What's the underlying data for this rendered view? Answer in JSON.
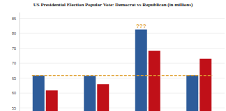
{
  "chart_data": {
    "type": "bar",
    "title": "US Presidential Election Popular Vote: Democrat vs Republican (in millions)",
    "categories": [
      null,
      null,
      null,
      null
    ],
    "series": [
      {
        "color": "#2e5c9a",
        "values": [
          65.9,
          65.8,
          81.3,
          66.0
        ]
      },
      {
        "color": "#c01018",
        "values": [
          60.9,
          63.0,
          74.2,
          71.5
        ]
      }
    ],
    "reference_line": {
      "value": 65.9,
      "color": "#e0a030",
      "line_style": "dashed"
    },
    "annotations": [
      {
        "text": "???",
        "color": "#e0a030"
      }
    ],
    "ylim": [
      54,
      87
    ],
    "yticks": [
      55,
      60,
      65,
      70,
      75,
      80,
      85
    ],
    "grid": true
  }
}
